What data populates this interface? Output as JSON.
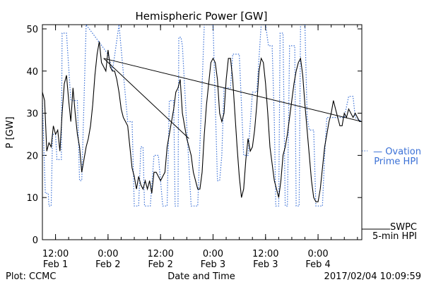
{
  "page": {
    "plot_credit": "Plot: CCMC",
    "timestamp": "2017/02/04 10:09:59"
  },
  "chart_data": {
    "type": "line",
    "title": "Hemispheric Power [GW]",
    "xlabel": "Date and Time",
    "ylabel": "P [GW]",
    "ylim": [
      0,
      51
    ],
    "yticks": [
      0,
      10,
      20,
      30,
      40,
      50
    ],
    "xlim": [
      "2017-02-01T09:00",
      "2017-02-04T10:00"
    ],
    "xticks": [
      {
        "t": "2017-02-01T12:00",
        "time": "12:00",
        "date": "Feb 1"
      },
      {
        "t": "2017-02-02T00:00",
        "time": "0:00",
        "date": "Feb 2"
      },
      {
        "t": "2017-02-02T12:00",
        "time": "12:00",
        "date": "Feb 2"
      },
      {
        "t": "2017-02-03T00:00",
        "time": "0:00",
        "date": "Feb 3"
      },
      {
        "t": "2017-02-03T12:00",
        "time": "12:00",
        "date": "Feb 3"
      },
      {
        "t": "2017-02-04T00:00",
        "time": "0:00",
        "date": "Feb 4"
      }
    ],
    "grid": false,
    "legend_placement": "right",
    "series": [
      {
        "name": "SWPC 5-min HPI",
        "legend_lines": [
          "SWPC",
          "5-min HPI"
        ],
        "color": "#000000",
        "style": "solid",
        "points": [
          [
            "2017-02-01T09:00",
            35
          ],
          [
            "2017-02-01T09:30",
            33
          ],
          [
            "2017-02-01T10:00",
            21
          ],
          [
            "2017-02-01T10:30",
            23
          ],
          [
            "2017-02-01T11:00",
            22
          ],
          [
            "2017-02-01T11:30",
            27
          ],
          [
            "2017-02-01T12:00",
            25
          ],
          [
            "2017-02-01T12:30",
            26
          ],
          [
            "2017-02-01T13:00",
            21
          ],
          [
            "2017-02-01T13:30",
            30
          ],
          [
            "2017-02-01T14:00",
            37
          ],
          [
            "2017-02-01T14:30",
            39
          ],
          [
            "2017-02-01T15:00",
            33
          ],
          [
            "2017-02-01T15:30",
            28
          ],
          [
            "2017-02-01T16:00",
            36
          ],
          [
            "2017-02-01T16:30",
            30
          ],
          [
            "2017-02-01T17:00",
            25
          ],
          [
            "2017-02-01T17:30",
            22
          ],
          [
            "2017-02-01T18:00",
            16
          ],
          [
            "2017-02-01T18:30",
            19
          ],
          [
            "2017-02-01T19:00",
            22
          ],
          [
            "2017-02-01T19:30",
            24
          ],
          [
            "2017-02-01T20:00",
            27
          ],
          [
            "2017-02-01T20:30",
            32
          ],
          [
            "2017-02-01T21:00",
            39
          ],
          [
            "2017-02-01T21:30",
            44
          ],
          [
            "2017-02-01T22:00",
            47
          ],
          [
            "2017-02-01T22:30",
            42
          ],
          [
            "2017-02-01T23:00",
            41
          ],
          [
            "2017-02-01T23:30",
            40
          ],
          [
            "2017-02-02T00:00",
            45
          ],
          [
            "2017-02-02T00:30",
            41
          ],
          [
            "2017-02-02T01:00",
            40
          ],
          [
            "2017-02-02T01:30",
            40
          ],
          [
            "2017-02-02T02:00",
            38
          ],
          [
            "2017-02-02T02:30",
            35
          ],
          [
            "2017-02-02T03:00",
            31
          ],
          [
            "2017-02-02T03:30",
            29
          ],
          [
            "2017-02-02T04:00",
            28
          ],
          [
            "2017-02-02T04:30",
            27
          ],
          [
            "2017-02-02T05:00",
            22
          ],
          [
            "2017-02-02T05:30",
            17
          ],
          [
            "2017-02-02T06:00",
            15
          ],
          [
            "2017-02-02T06:30",
            12
          ],
          [
            "2017-02-02T07:00",
            15
          ],
          [
            "2017-02-02T07:30",
            13
          ],
          [
            "2017-02-02T08:00",
            12
          ],
          [
            "2017-02-02T08:30",
            14
          ],
          [
            "2017-02-02T09:00",
            12
          ],
          [
            "2017-02-02T09:30",
            14
          ],
          [
            "2017-02-02T10:00",
            11
          ],
          [
            "2017-02-02T10:30",
            16
          ],
          [
            "2017-02-02T11:00",
            16
          ],
          [
            "2017-02-02T11:30",
            15
          ],
          [
            "2017-02-02T12:00",
            14
          ],
          [
            "2017-02-02T12:30",
            15
          ],
          [
            "2017-02-02T13:00",
            16
          ],
          [
            "2017-02-02T13:30",
            22
          ],
          [
            "2017-02-02T14:00",
            25
          ],
          [
            "2017-02-02T14:30",
            28
          ],
          [
            "2017-02-02T15:00",
            31
          ],
          [
            "2017-02-02T15:30",
            35
          ],
          [
            "2017-02-02T16:00",
            36
          ],
          [
            "2017-02-02T16:30",
            38
          ],
          [
            "2017-02-02T17:00",
            30
          ],
          [
            "2017-02-02T17:30",
            27
          ],
          [
            "2017-02-02T18:00",
            24
          ],
          [
            "2017-02-02T18:30",
            22
          ],
          [
            "2017-02-02T19:00",
            20
          ],
          [
            "2017-02-02T19:30",
            16
          ],
          [
            "2017-02-02T20:00",
            14
          ],
          [
            "2017-02-02T20:30",
            12
          ],
          [
            "2017-02-02T21:00",
            12
          ],
          [
            "2017-02-02T21:30",
            16
          ],
          [
            "2017-02-02T22:00",
            25
          ],
          [
            "2017-02-02T22:30",
            32
          ],
          [
            "2017-02-02T23:00",
            37
          ],
          [
            "2017-02-02T23:30",
            42
          ],
          [
            "2017-02-03T00:00",
            43
          ],
          [
            "2017-02-03T00:30",
            42
          ],
          [
            "2017-02-03T01:00",
            38
          ],
          [
            "2017-02-03T01:30",
            30
          ],
          [
            "2017-02-03T02:00",
            28
          ],
          [
            "2017-02-03T02:30",
            30
          ],
          [
            "2017-02-03T03:00",
            38
          ],
          [
            "2017-02-03T03:30",
            43
          ],
          [
            "2017-02-03T04:00",
            43
          ],
          [
            "2017-02-03T04:30",
            38
          ],
          [
            "2017-02-03T05:00",
            30
          ],
          [
            "2017-02-03T05:30",
            22
          ],
          [
            "2017-02-03T06:00",
            15
          ],
          [
            "2017-02-03T06:30",
            10
          ],
          [
            "2017-02-03T07:00",
            12
          ],
          [
            "2017-02-03T07:30",
            19
          ],
          [
            "2017-02-03T08:00",
            24
          ],
          [
            "2017-02-03T08:30",
            21
          ],
          [
            "2017-02-03T09:00",
            22
          ],
          [
            "2017-02-03T09:30",
            26
          ],
          [
            "2017-02-03T10:00",
            32
          ],
          [
            "2017-02-03T10:30",
            40
          ],
          [
            "2017-02-03T11:00",
            43
          ],
          [
            "2017-02-03T11:30",
            42
          ],
          [
            "2017-02-03T12:00",
            37
          ],
          [
            "2017-02-03T12:30",
            30
          ],
          [
            "2017-02-03T13:00",
            22
          ],
          [
            "2017-02-03T13:30",
            18
          ],
          [
            "2017-02-03T14:00",
            14
          ],
          [
            "2017-02-03T14:30",
            12
          ],
          [
            "2017-02-03T15:00",
            10
          ],
          [
            "2017-02-03T15:30",
            14
          ],
          [
            "2017-02-03T16:00",
            20
          ],
          [
            "2017-02-03T16:30",
            22
          ],
          [
            "2017-02-03T17:00",
            25
          ],
          [
            "2017-02-03T17:30",
            29
          ],
          [
            "2017-02-03T18:00",
            33
          ],
          [
            "2017-02-03T18:30",
            37
          ],
          [
            "2017-02-03T19:00",
            40
          ],
          [
            "2017-02-03T19:30",
            42
          ],
          [
            "2017-02-03T20:00",
            43
          ],
          [
            "2017-02-03T20:30",
            39
          ],
          [
            "2017-02-03T21:00",
            32
          ],
          [
            "2017-02-03T21:30",
            26
          ],
          [
            "2017-02-03T22:00",
            20
          ],
          [
            "2017-02-03T22:30",
            14
          ],
          [
            "2017-02-03T23:00",
            10
          ],
          [
            "2017-02-03T23:30",
            9
          ],
          [
            "2017-02-04T00:00",
            9
          ],
          [
            "2017-02-04T00:30",
            12
          ],
          [
            "2017-02-04T01:00",
            17
          ],
          [
            "2017-02-04T01:30",
            22
          ],
          [
            "2017-02-04T02:00",
            25
          ],
          [
            "2017-02-04T02:30",
            28
          ],
          [
            "2017-02-04T03:00",
            30
          ],
          [
            "2017-02-04T03:30",
            33
          ],
          [
            "2017-02-04T04:00",
            31
          ],
          [
            "2017-02-04T04:30",
            29
          ],
          [
            "2017-02-04T05:00",
            27
          ],
          [
            "2017-02-04T05:30",
            27
          ],
          [
            "2017-02-04T06:00",
            30
          ],
          [
            "2017-02-04T06:30",
            29
          ],
          [
            "2017-02-04T07:00",
            31
          ],
          [
            "2017-02-04T07:30",
            30
          ],
          [
            "2017-02-04T08:00",
            29
          ],
          [
            "2017-02-04T08:30",
            30
          ],
          [
            "2017-02-04T09:00",
            29
          ],
          [
            "2017-02-04T09:30",
            28
          ],
          [
            "2017-02-04T10:00",
            28
          ]
        ]
      },
      {
        "name": "Ovation Prime HPI",
        "legend_lines": [
          "— Ovation",
          "Prime HPI"
        ],
        "color": "#3a70d6",
        "style": "dotted",
        "points": [
          [
            "2017-02-01T09:00",
            33
          ],
          [
            "2017-02-01T09:40",
            11
          ],
          [
            "2017-02-01T10:20",
            11
          ],
          [
            "2017-02-01T10:30",
            8
          ],
          [
            "2017-02-01T11:00",
            8
          ],
          [
            "2017-02-01T11:20",
            25
          ],
          [
            "2017-02-01T12:00",
            25
          ],
          [
            "2017-02-01T12:20",
            19
          ],
          [
            "2017-02-01T13:20",
            19
          ],
          [
            "2017-02-01T13:30",
            49
          ],
          [
            "2017-02-01T14:30",
            49
          ],
          [
            "2017-02-01T15:30",
            33
          ],
          [
            "2017-02-01T17:00",
            33
          ],
          [
            "2017-02-01T17:30",
            14
          ],
          [
            "2017-02-01T18:00",
            14
          ],
          [
            "2017-02-01T19:00",
            52
          ],
          [
            "2017-02-02T00:00",
            44
          ],
          [
            "2017-02-02T01:00",
            40
          ],
          [
            "2017-02-02T02:30",
            52
          ],
          [
            "2017-02-02T04:30",
            28
          ],
          [
            "2017-02-02T05:30",
            28
          ],
          [
            "2017-02-02T06:00",
            8
          ],
          [
            "2017-02-02T07:00",
            8
          ],
          [
            "2017-02-02T07:30",
            22
          ],
          [
            "2017-02-02T08:00",
            22
          ],
          [
            "2017-02-02T08:20",
            8
          ],
          [
            "2017-02-02T09:40",
            8
          ],
          [
            "2017-02-02T10:30",
            20
          ],
          [
            "2017-02-02T11:30",
            20
          ],
          [
            "2017-02-02T12:30",
            8
          ],
          [
            "2017-02-02T13:30",
            8
          ],
          [
            "2017-02-02T14:00",
            33
          ],
          [
            "2017-02-02T15:00",
            33
          ],
          [
            "2017-02-02T15:20",
            8
          ],
          [
            "2017-02-02T16:00",
            8
          ],
          [
            "2017-02-02T16:10",
            48
          ],
          [
            "2017-02-02T16:40",
            48
          ],
          [
            "2017-02-02T17:00",
            46
          ],
          [
            "2017-02-02T19:00",
            8
          ],
          [
            "2017-02-02T20:30",
            8
          ],
          [
            "2017-02-02T22:00",
            52
          ],
          [
            "2017-02-03T00:00",
            52
          ],
          [
            "2017-02-03T01:00",
            14
          ],
          [
            "2017-02-03T01:30",
            14
          ],
          [
            "2017-02-03T02:00",
            20
          ],
          [
            "2017-02-03T02:30",
            36
          ],
          [
            "2017-02-03T04:00",
            36
          ],
          [
            "2017-02-03T04:30",
            44
          ],
          [
            "2017-02-03T06:00",
            44
          ],
          [
            "2017-02-03T07:00",
            20
          ],
          [
            "2017-02-03T08:00",
            20
          ],
          [
            "2017-02-03T09:00",
            35
          ],
          [
            "2017-02-03T10:00",
            35
          ],
          [
            "2017-02-03T11:00",
            52
          ],
          [
            "2017-02-03T12:00",
            52
          ],
          [
            "2017-02-03T12:40",
            46
          ],
          [
            "2017-02-03T13:30",
            46
          ],
          [
            "2017-02-03T14:00",
            28
          ],
          [
            "2017-02-03T14:20",
            8
          ],
          [
            "2017-02-03T15:00",
            8
          ],
          [
            "2017-02-03T15:20",
            49
          ],
          [
            "2017-02-03T16:00",
            49
          ],
          [
            "2017-02-03T16:30",
            8
          ],
          [
            "2017-02-03T17:00",
            8
          ],
          [
            "2017-02-03T17:30",
            46
          ],
          [
            "2017-02-03T18:40",
            46
          ],
          [
            "2017-02-03T19:00",
            8
          ],
          [
            "2017-02-03T19:40",
            8
          ],
          [
            "2017-02-03T20:00",
            52
          ],
          [
            "2017-02-03T21:00",
            52
          ],
          [
            "2017-02-03T21:30",
            29
          ],
          [
            "2017-02-03T22:00",
            26
          ],
          [
            "2017-02-03T23:00",
            26
          ],
          [
            "2017-02-03T23:30",
            8
          ],
          [
            "2017-02-04T01:00",
            8
          ],
          [
            "2017-02-04T01:30",
            20
          ],
          [
            "2017-02-04T02:00",
            29
          ],
          [
            "2017-02-04T05:00",
            29
          ],
          [
            "2017-02-04T06:00",
            29
          ],
          [
            "2017-02-04T07:00",
            34
          ],
          [
            "2017-02-04T08:00",
            34
          ],
          [
            "2017-02-04T08:30",
            29
          ],
          [
            "2017-02-04T10:00",
            28
          ]
        ]
      }
    ],
    "annotations": [
      {
        "points": [
          [
            "2017-02-01T23:00",
            43
          ],
          [
            "2017-02-04T10:00",
            28
          ]
        ]
      },
      {
        "points": [
          [
            "2017-02-01T23:00",
            43
          ],
          [
            "2017-02-02T18:30",
            24
          ]
        ]
      }
    ]
  }
}
